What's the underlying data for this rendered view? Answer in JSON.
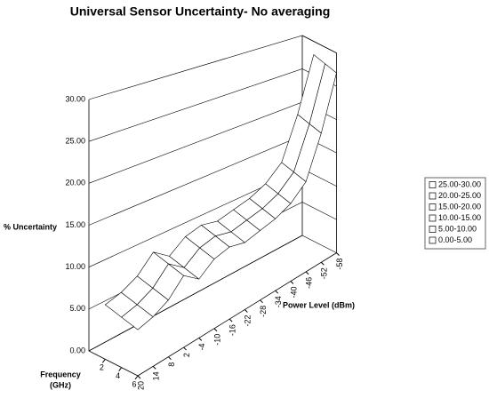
{
  "chart_data": {
    "type": "surface3d",
    "title": "Universal Sensor Uncertainty- No averaging",
    "z_label": "% Uncertainty",
    "x_label": "Power Level (dBm)",
    "y_label": [
      "Frequency",
      "(GHz)"
    ],
    "x": [
      20,
      14,
      8,
      2,
      -4,
      -10,
      -16,
      -22,
      -28,
      -34,
      -40,
      -46,
      -52,
      -58
    ],
    "yticks": [
      2,
      4,
      6
    ],
    "ylim": [
      0,
      6
    ],
    "zlim": [
      0,
      30
    ],
    "zticks": [
      {
        "value": 0,
        "label": "0.00"
      },
      {
        "value": 5,
        "label": "5.00"
      },
      {
        "value": 10,
        "label": "10.00"
      },
      {
        "value": 15,
        "label": "15.00"
      },
      {
        "value": 20,
        "label": "20.00"
      },
      {
        "value": 25,
        "label": "25.00"
      },
      {
        "value": 30,
        "label": "30.00"
      }
    ],
    "z": [
      [
        6.5,
        7,
        8,
        10,
        8.5,
        10,
        10.5,
        10,
        10.5,
        11,
        12,
        14,
        20,
        28
      ],
      [
        6,
        6.5,
        7.5,
        9.5,
        8,
        9.5,
        10,
        9.5,
        10,
        10.5,
        11.5,
        13.5,
        19.5,
        27.5
      ],
      [
        5.5,
        6,
        7,
        9,
        7.5,
        9,
        9.5,
        9,
        9.5,
        10,
        11,
        13,
        19,
        27
      ]
    ],
    "legend": [
      "25.00-30.00",
      "20.00-25.00",
      "15.00-20.00",
      "10.00-15.00",
      "5.00-10.00",
      "0.00-5.00"
    ],
    "surface_color": "#ffffff"
  }
}
